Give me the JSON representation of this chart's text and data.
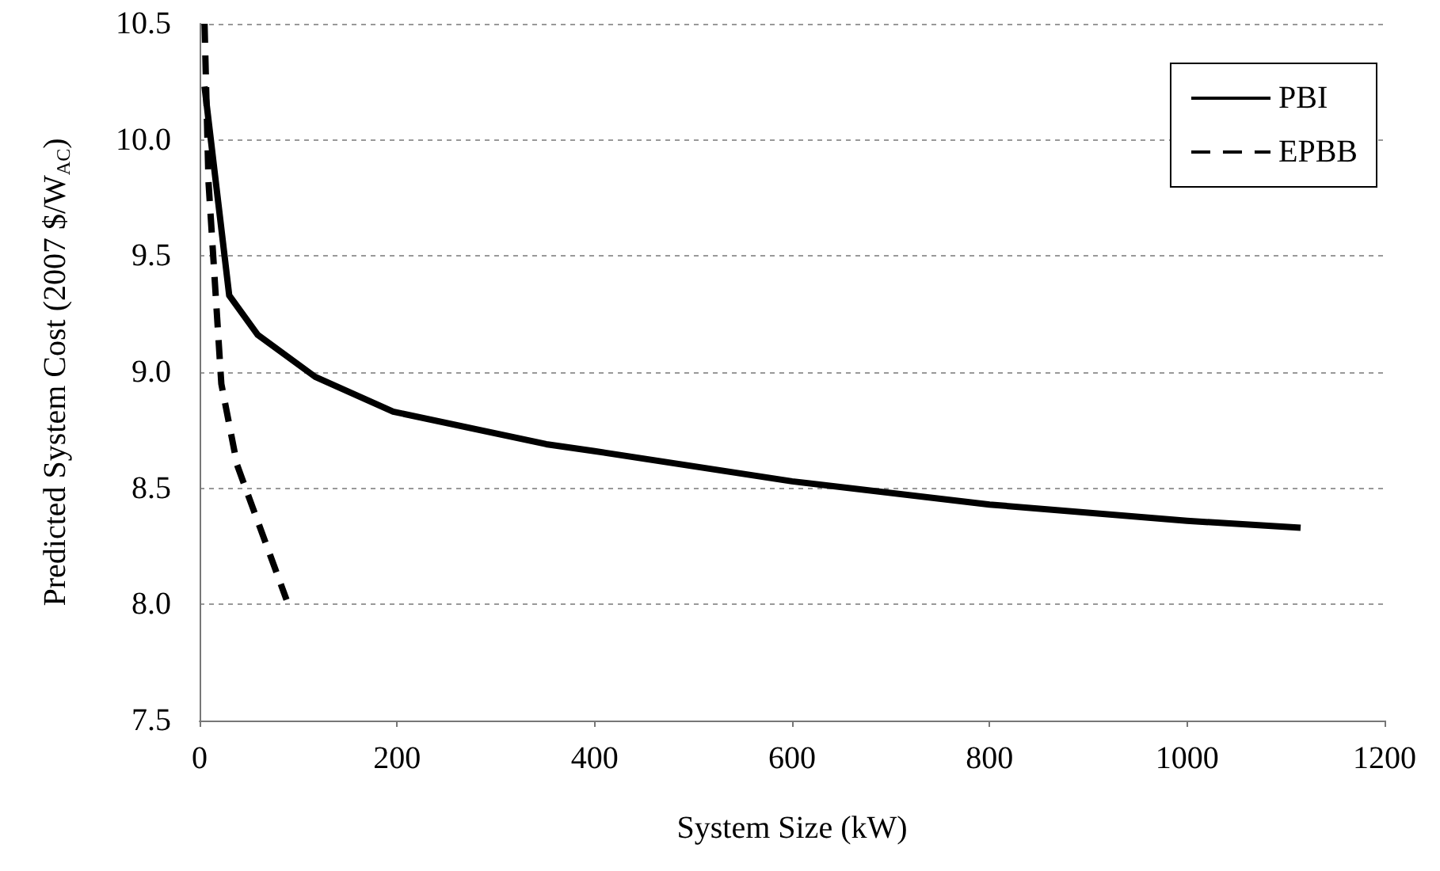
{
  "chart_data": {
    "type": "line",
    "xlabel": "System Size (kW)",
    "ylabel": "Predicted System Cost (2007 $/W$_{AC}$)",
    "xlim": [
      0,
      1200
    ],
    "xticks": [
      0,
      200,
      400,
      600,
      800,
      1000,
      1200
    ],
    "ylim": [
      7.5,
      10.5
    ],
    "yticks": [
      7.5,
      {
        "value": 8,
        "label": "8.0"
      },
      8.5,
      {
        "value": 9,
        "label": "9.0"
      },
      9.5,
      {
        "value": 10,
        "label": "10.0"
      },
      10.5
    ],
    "grid": "y",
    "legend": "top right",
    "marker": "none",
    "series": [
      {
        "name": "PBI",
        "color": "#000000",
        "line_style": "solid",
        "x": [
          5,
          30,
          59,
          117,
          196,
          351,
          400,
          600,
          800,
          1000,
          1115
        ],
        "values": [
          10.23,
          9.33,
          9.16,
          8.98,
          8.83,
          8.69,
          8.66,
          8.53,
          8.43,
          8.36,
          8.33
        ]
      },
      {
        "name": "EPBB",
        "color": "#000000",
        "line_style": "dashed",
        "x": [
          5,
          9,
          22,
          38,
          88
        ],
        "values": [
          10.5,
          9.82,
          8.95,
          8.6,
          8.02
        ]
      }
    ]
  }
}
